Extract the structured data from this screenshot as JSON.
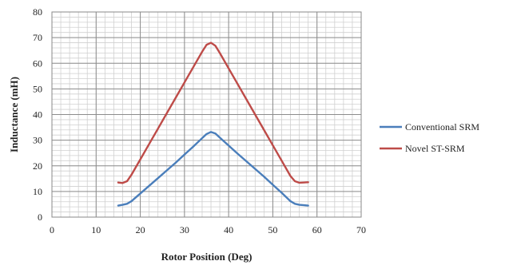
{
  "chart_data": {
    "type": "line",
    "xlabel": "Rotor Position (Deg)",
    "ylabel": "Inductance (mH)",
    "xlim": [
      0,
      70
    ],
    "ylim": [
      0,
      80
    ],
    "x_major_ticks": [
      0,
      10,
      20,
      30,
      40,
      50,
      60,
      70
    ],
    "y_major_ticks": [
      0,
      10,
      20,
      30,
      40,
      50,
      60,
      70,
      80
    ],
    "x_minor_step": 2,
    "y_minor_step": 2,
    "grid": true,
    "legend_position": "right",
    "series": [
      {
        "name": "Conventional SRM",
        "color": "#4a7ebb",
        "x": [
          15,
          16,
          17,
          18,
          20,
          22,
          24,
          26,
          28,
          30,
          32,
          34,
          35,
          36,
          37,
          38,
          40,
          42,
          44,
          46,
          48,
          50,
          52,
          54,
          55,
          56,
          58
        ],
        "y": [
          4.5,
          4.8,
          5.2,
          6.2,
          9.2,
          12.2,
          15.2,
          18.2,
          21.2,
          24.4,
          27.5,
          30.8,
          32.4,
          33.2,
          32.6,
          31.0,
          27.9,
          24.8,
          21.8,
          18.8,
          15.8,
          12.6,
          9.5,
          6.2,
          5.2,
          4.8,
          4.5
        ]
      },
      {
        "name": "Novel ST-SRM",
        "color": "#be4b48",
        "x": [
          15,
          16,
          17,
          18,
          20,
          22,
          24,
          26,
          28,
          30,
          32,
          34,
          35,
          36,
          37,
          38,
          40,
          42,
          44,
          46,
          48,
          50,
          52,
          54,
          55,
          56,
          58
        ],
        "y": [
          13.5,
          13.3,
          14.0,
          16.5,
          22.5,
          28.5,
          34.5,
          40.5,
          46.5,
          52.5,
          58.5,
          64.5,
          67.2,
          68.0,
          66.8,
          64.0,
          58.0,
          52.0,
          46.0,
          40.0,
          34.0,
          28.0,
          22.0,
          16.0,
          14.0,
          13.4,
          13.6
        ]
      }
    ]
  }
}
